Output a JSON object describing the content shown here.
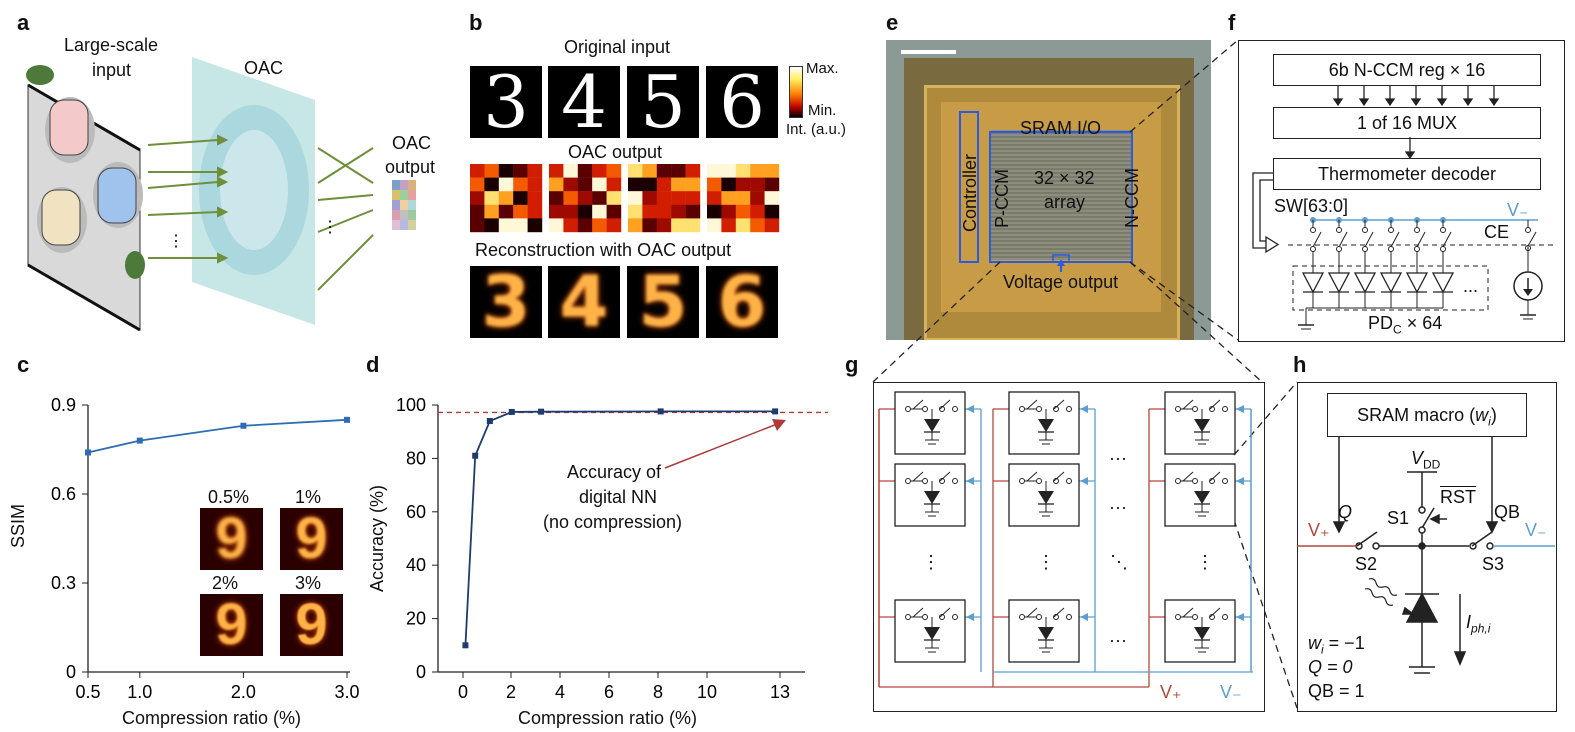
{
  "panels": {
    "a": "a",
    "b": "b",
    "c": "c",
    "d": "d",
    "e": "e",
    "f": "f",
    "g": "g",
    "h": "h"
  },
  "a": {
    "input_label_1": "Large-scale",
    "input_label_2": "input",
    "oac_label": "OAC",
    "output_label_1": "OAC",
    "output_label_2": "output"
  },
  "b": {
    "original_title": "Original input",
    "oac_title": "OAC output",
    "recon_title": "Reconstruction with OAC output",
    "digits": [
      "3",
      "4",
      "5",
      "6"
    ],
    "cbar_max": "Max.",
    "cbar_min": "Min.",
    "cbar_unit": "Int. (a.u.)"
  },
  "e": {
    "sram_io": "SRAM I/O",
    "controller": "Controller",
    "pccm": "P-CCM",
    "nccm": "N-CCM",
    "array_1": "32 × 32",
    "array_2": "array",
    "voltage_output": "Voltage output"
  },
  "f": {
    "reg": "6b N-CCM reg × 16",
    "mux": "1 of 16 MUX",
    "decoder": "Thermometer  decoder",
    "sw": "SW[63:0]",
    "vminus": "V₋",
    "ce": "CE",
    "dots": "...",
    "pdc": "PD",
    "pdc_sub": "C",
    "pdc_tail": " × 64"
  },
  "g": {
    "vplus": "V₊",
    "vminus": "V₋",
    "hdots": "···",
    "vdots": "⋮",
    "ddots": "⋱"
  },
  "h": {
    "sram": "SRAM macro (",
    "sram_w": "w",
    "sram_i": "i",
    "sram_close": ")",
    "vdd": "V",
    "vdd_sub": "DD",
    "rst": "RST",
    "q": "Q",
    "qb": "QB",
    "s1": "S1",
    "s2": "S2",
    "s3": "S3",
    "vplus": "V₊",
    "vminus": "V₋",
    "iph": "I",
    "iph_sub": "ph,i",
    "w_line": "w",
    "w_sub": "i",
    "w_val": " = −1",
    "q_line": "Q = 0",
    "qb_line": "QB = 1"
  },
  "chart_data": [
    {
      "type": "line",
      "panel": "c",
      "xlabel": "Compression ratio (%)",
      "ylabel": "SSIM",
      "x": [
        0.5,
        1.0,
        2.0,
        3.0
      ],
      "values": [
        0.74,
        0.78,
        0.83,
        0.85
      ],
      "xticks": [
        "0.5",
        "1.0",
        "2.0",
        "3.0"
      ],
      "yticks": [
        "0",
        "0.3",
        "0.6",
        "0.9"
      ],
      "ylim": [
        0,
        0.9
      ],
      "insets": [
        "0.5%",
        "1%",
        "2%",
        "3%"
      ],
      "color": "#2e6db4"
    },
    {
      "type": "line",
      "panel": "d",
      "xlabel": "Compression ratio (%)",
      "ylabel": "Accuracy (%)",
      "x": [
        0.1,
        0.5,
        1.1,
        2.0,
        3.2,
        8.1,
        12.8
      ],
      "values": [
        10,
        81,
        94,
        97.4,
        97.5,
        97.6,
        97.6
      ],
      "xticks": [
        "0",
        "2",
        "4",
        "6",
        "8",
        "10",
        "13"
      ],
      "yticks": [
        "0",
        "20",
        "40",
        "60",
        "80",
        "100"
      ],
      "ylim": [
        0,
        100
      ],
      "reference": 97.2,
      "annotation_1": "Accuracy of",
      "annotation_2": "digital NN",
      "annotation_3": "(no compression)",
      "color": "#1f3b6e",
      "ref_color": "#b03a3a"
    }
  ]
}
